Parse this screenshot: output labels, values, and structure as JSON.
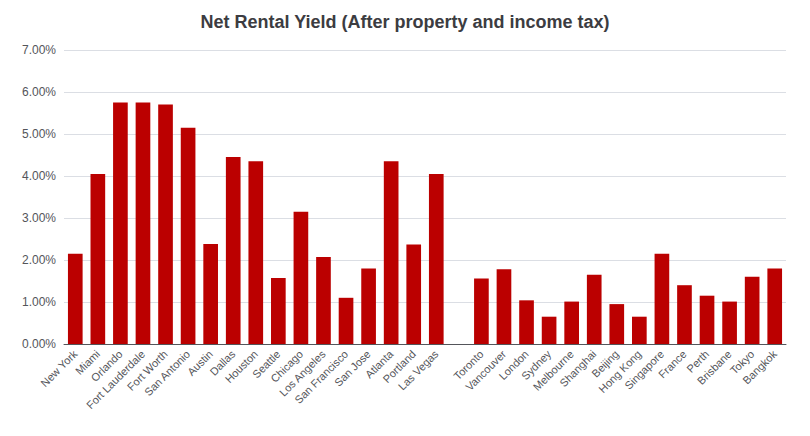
{
  "chart_data": {
    "type": "bar",
    "title": "Net Rental Yield (After property and income tax)",
    "categories": [
      "New York",
      "Miami",
      "Orlando",
      "Fort Lauderdale",
      "Fort Worth",
      "San Antonio",
      "Austin",
      "Dallas",
      "Houston",
      "Seattle",
      "Chicago",
      "Los Angeles",
      "San Francisco",
      "San Jose",
      "Atlanta",
      "Portland",
      "Las Vegas",
      null,
      "Toronto",
      "Vancouver",
      "London",
      "Sydney",
      "Melbourne",
      "Shanghai",
      "Beijing",
      "Hong Kong",
      "Singapore",
      "France",
      "Perth",
      "Brisbane",
      "Tokyo",
      "Bangkok"
    ],
    "values": [
      0.0215,
      0.0405,
      0.0575,
      0.0575,
      0.057,
      0.0515,
      0.0238,
      0.0445,
      0.0435,
      0.0157,
      0.0315,
      0.0207,
      0.011,
      0.018,
      0.0435,
      0.0237,
      0.0405,
      null,
      0.0156,
      0.0178,
      0.0104,
      0.0065,
      0.0101,
      0.0165,
      0.0095,
      0.0065,
      0.0215,
      0.014,
      0.0115,
      0.0101,
      0.016,
      0.018
    ],
    "color": "#BB0000",
    "ylim": [
      0.0,
      0.07
    ],
    "yticks": [
      {
        "value": 0.0,
        "label": "0.00%"
      },
      {
        "value": 0.01,
        "label": "1.00%"
      },
      {
        "value": 0.02,
        "label": "2.00%"
      },
      {
        "value": 0.03,
        "label": "3.00%"
      },
      {
        "value": 0.04,
        "label": "4.00%"
      },
      {
        "value": 0.05,
        "label": "5.00%"
      },
      {
        "value": 0.06,
        "label": "6.00%"
      },
      {
        "value": 0.07,
        "label": "7.00%"
      }
    ],
    "grid": true
  }
}
